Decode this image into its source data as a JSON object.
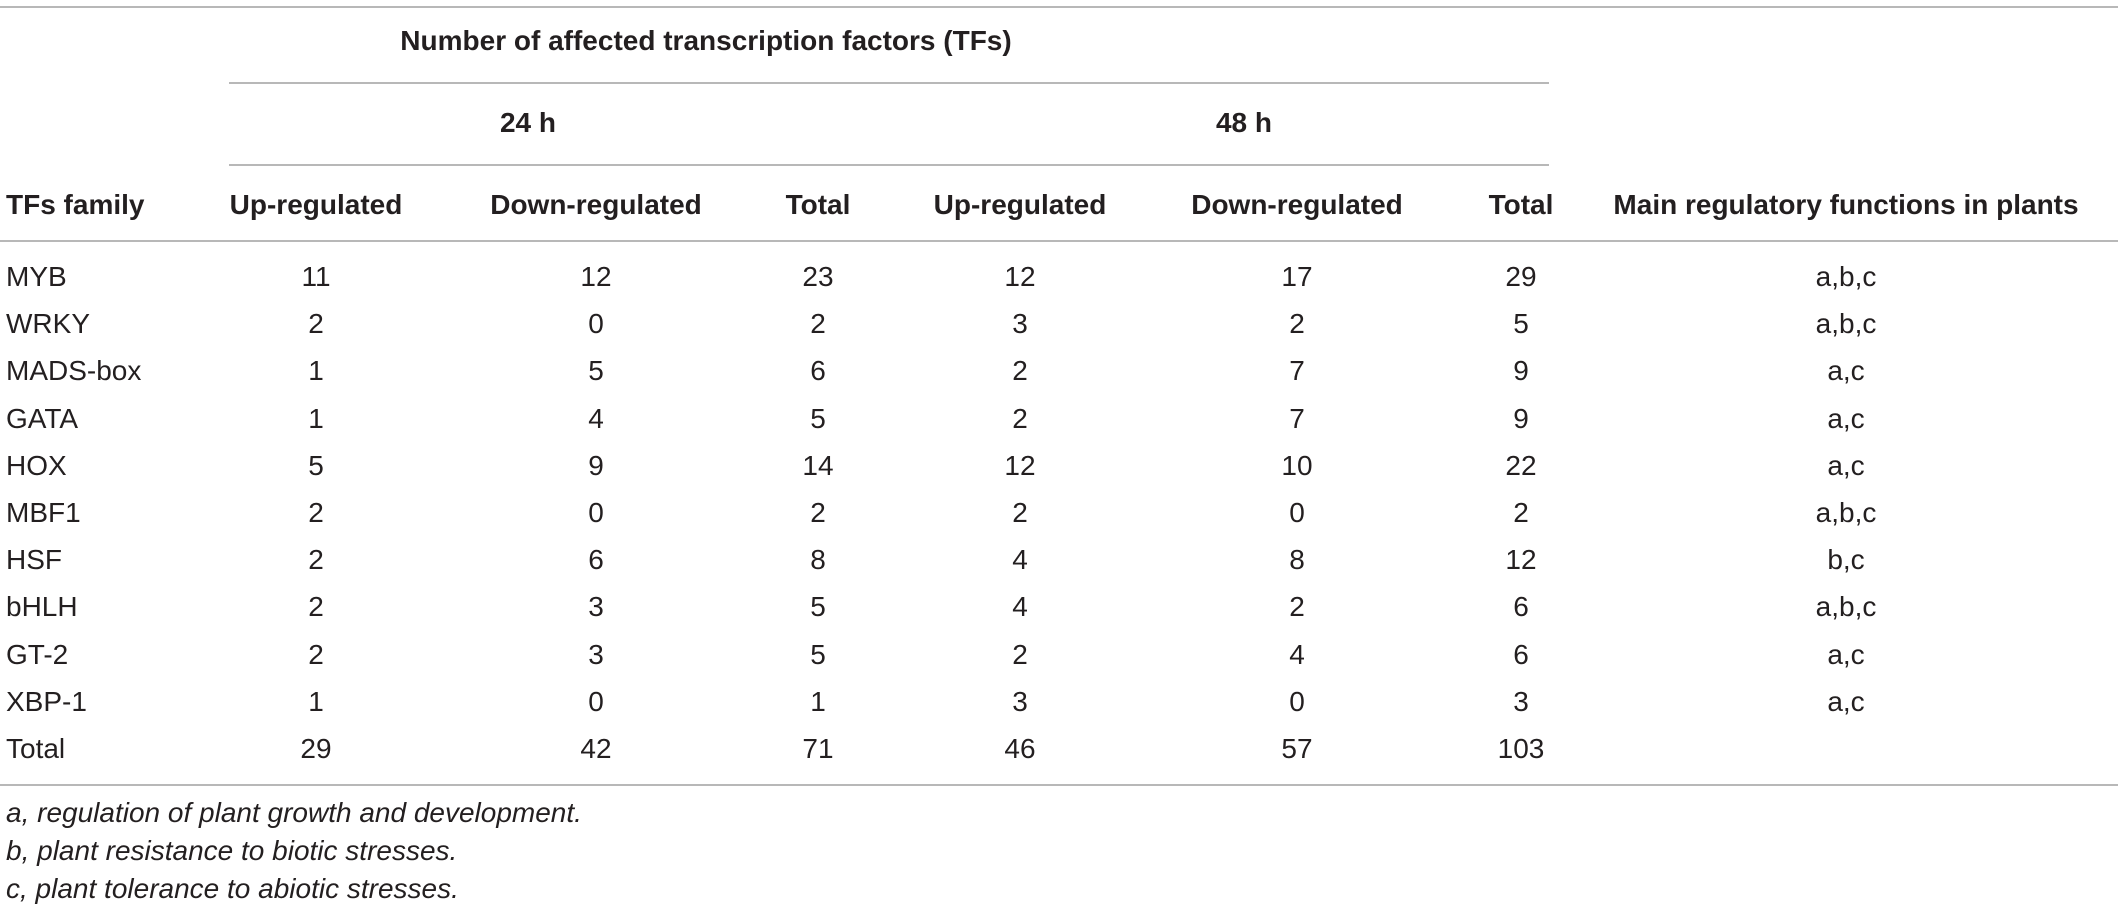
{
  "table": {
    "group_header": "Number of affected transcription factors (TFs)",
    "period_headers": [
      "24 h",
      "48 h"
    ],
    "columns": [
      "TFs family",
      "Up-regulated",
      "Down-regulated",
      "Total",
      "Up-regulated",
      "Down-regulated",
      "Total",
      "Main regulatory functions in plants"
    ],
    "rows": [
      [
        "MYB",
        "11",
        "12",
        "23",
        "12",
        "17",
        "29",
        "a,b,c"
      ],
      [
        "WRKY",
        "2",
        "0",
        "2",
        "3",
        "2",
        "5",
        "a,b,c"
      ],
      [
        "MADS-box",
        "1",
        "5",
        "6",
        "2",
        "7",
        "9",
        "a,c"
      ],
      [
        "GATA",
        "1",
        "4",
        "5",
        "2",
        "7",
        "9",
        "a,c"
      ],
      [
        "HOX",
        "5",
        "9",
        "14",
        "12",
        "10",
        "22",
        "a,c"
      ],
      [
        "MBF1",
        "2",
        "0",
        "2",
        "2",
        "0",
        "2",
        "a,b,c"
      ],
      [
        "HSF",
        "2",
        "6",
        "8",
        "4",
        "8",
        "12",
        "b,c"
      ],
      [
        "bHLH",
        "2",
        "3",
        "5",
        "4",
        "2",
        "6",
        "a,b,c"
      ],
      [
        "GT-2",
        "2",
        "3",
        "5",
        "2",
        "4",
        "6",
        "a,c"
      ],
      [
        "XBP-1",
        "1",
        "0",
        "1",
        "3",
        "0",
        "3",
        "a,c"
      ],
      [
        "Total",
        "29",
        "42",
        "71",
        "46",
        "57",
        "103",
        ""
      ]
    ],
    "footnotes": [
      "a, regulation of plant growth and development.",
      "b, plant resistance to biotic stresses.",
      "c, plant tolerance to abiotic stresses."
    ]
  }
}
